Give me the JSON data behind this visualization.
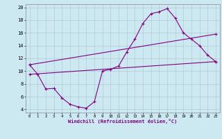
{
  "xlabel": "Windchill (Refroidissement éolien,°C)",
  "bg_color": "#cce8f0",
  "line_color": "#800080",
  "xlim": [
    -0.5,
    23.5
  ],
  "ylim": [
    3.5,
    20.5
  ],
  "yticks": [
    4,
    6,
    8,
    10,
    12,
    14,
    16,
    18,
    20
  ],
  "xticks": [
    0,
    1,
    2,
    3,
    4,
    5,
    6,
    7,
    8,
    9,
    10,
    11,
    12,
    13,
    14,
    15,
    16,
    17,
    18,
    19,
    20,
    21,
    22,
    23
  ],
  "series1_x": [
    0,
    1,
    2,
    3,
    4,
    5,
    6,
    7,
    8,
    9,
    10,
    11,
    12,
    13,
    14,
    15,
    16,
    17,
    18,
    19,
    20,
    21,
    22,
    23
  ],
  "series1_y": [
    11.0,
    9.5,
    7.2,
    7.3,
    5.8,
    4.8,
    4.4,
    4.2,
    5.2,
    10.0,
    10.3,
    10.8,
    13.0,
    15.0,
    17.5,
    19.0,
    19.3,
    19.8,
    18.3,
    16.0,
    15.0,
    14.0,
    12.5,
    11.5
  ],
  "series2_x": [
    0,
    23
  ],
  "series2_y": [
    9.5,
    11.5
  ],
  "series3_x": [
    0,
    23
  ],
  "series3_y": [
    11.0,
    15.8
  ]
}
